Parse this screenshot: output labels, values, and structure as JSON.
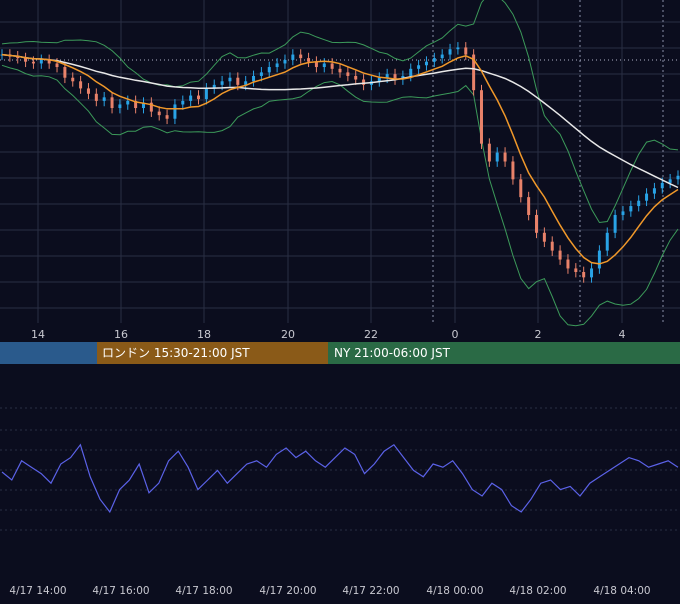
{
  "colors": {
    "background": "#0b0d1e",
    "grid": "#2a2e44",
    "candle_up": "#29a3e6",
    "candle_down": "#e8826a",
    "bollinger": "#3c9a5a",
    "ma_short": "#f0982a",
    "ma_long": "#e8e8e8",
    "oscillator": "#5b62e8",
    "session_tokyo": "#2a5a8c",
    "session_london": "#8a5a18",
    "session_ny": "#2a6a45",
    "axis_text": "#c8c8d0"
  },
  "sessions": [
    {
      "id": "tokyo",
      "label": ""
    },
    {
      "id": "london",
      "label": "ロンドン 15:30-21:00 JST"
    },
    {
      "id": "ny",
      "label": "NY 21:00-06:00 JST"
    }
  ],
  "chart_data": [
    {
      "type": "candlestick",
      "title": "",
      "x_ticks": [
        "14",
        "16",
        "18",
        "20",
        "22",
        "0",
        "2",
        "4"
      ],
      "grid": true,
      "series": [
        {
          "values": [
            1.1,
            1.099,
            1.098,
            1.096,
            1.095,
            1.097,
            1.095,
            1.093,
            1.087,
            1.085,
            1.081,
            1.078,
            1.074,
            1.076,
            1.07,
            1.072,
            1.074,
            1.07,
            1.073,
            1.068,
            1.066,
            1.064,
            1.072,
            1.074,
            1.077,
            1.075,
            1.081,
            1.083,
            1.085,
            1.087,
            1.083,
            1.085,
            1.088,
            1.09,
            1.093,
            1.095,
            1.097,
            1.1,
            1.098,
            1.096,
            1.093,
            1.095,
            1.092,
            1.09,
            1.088,
            1.086,
            1.083,
            1.085,
            1.087,
            1.089,
            1.086,
            1.088,
            1.092,
            1.094,
            1.096,
            1.098,
            1.1,
            1.103,
            1.104,
            1.1,
            1.08,
            1.05,
            1.04,
            1.045,
            1.04,
            1.03,
            1.02,
            1.01,
            1.0,
            0.995,
            0.99,
            0.985,
            0.98,
            0.978,
            0.975,
            0.98,
            0.99,
            1.0,
            1.01,
            1.012,
            1.015,
            1.018,
            1.022,
            1.025,
            1.028,
            1.03,
            1.032
          ]
        }
      ]
    },
    {
      "type": "line",
      "title": "",
      "x_ticks": [
        "4/17 14:00",
        "4/17 16:00",
        "4/17 18:00",
        "4/17 20:00",
        "4/17 22:00",
        "4/18 00:00",
        "4/18 02:00",
        "4/18 04:00"
      ],
      "grid": true,
      "series": [
        {
          "values": [
            0.55,
            0.5,
            0.62,
            0.58,
            0.54,
            0.48,
            0.6,
            0.64,
            0.72,
            0.52,
            0.38,
            0.3,
            0.44,
            0.5,
            0.6,
            0.42,
            0.48,
            0.62,
            0.68,
            0.58,
            0.44,
            0.5,
            0.56,
            0.48,
            0.54,
            0.6,
            0.62,
            0.58,
            0.66,
            0.7,
            0.64,
            0.68,
            0.62,
            0.58,
            0.64,
            0.7,
            0.66,
            0.54,
            0.6,
            0.68,
            0.72,
            0.64,
            0.56,
            0.52,
            0.6,
            0.58,
            0.62,
            0.54,
            0.44,
            0.4,
            0.48,
            0.44,
            0.34,
            0.3,
            0.38,
            0.48,
            0.5,
            0.44,
            0.46,
            0.4,
            0.48,
            0.52,
            0.56,
            0.6,
            0.64,
            0.62,
            0.58,
            0.6,
            0.62,
            0.58
          ]
        }
      ]
    }
  ]
}
